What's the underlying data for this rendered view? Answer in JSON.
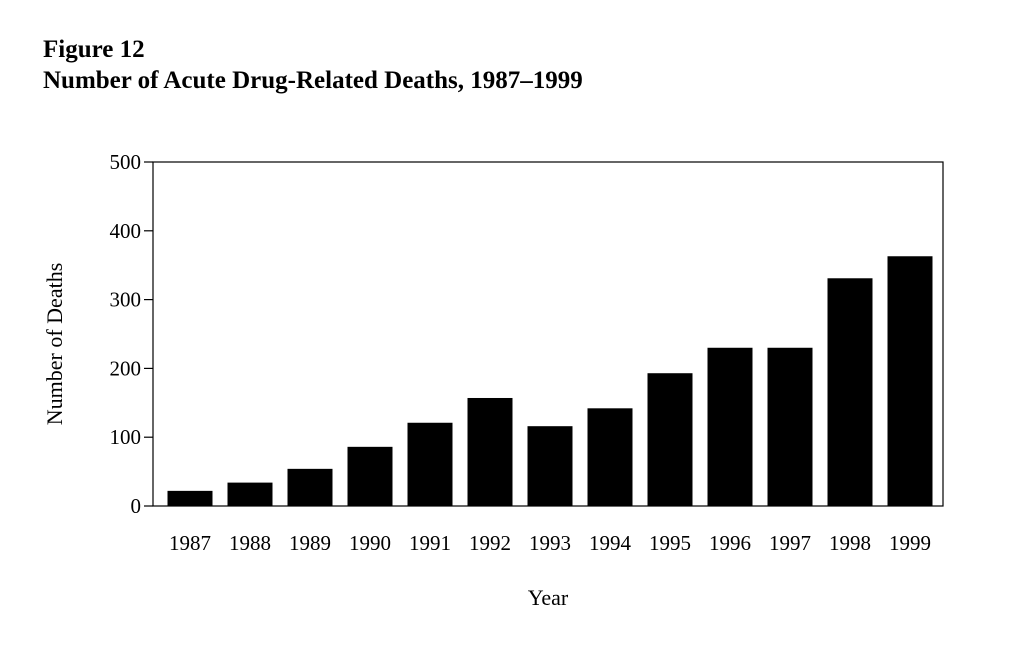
{
  "figure": {
    "number_label": "Figure 12"
  },
  "chart_data": {
    "type": "bar",
    "title": "Number of Acute Drug-Related Deaths, 1987–1999",
    "xlabel": "Year",
    "ylabel": "Number of Deaths",
    "categories": [
      "1987",
      "1988",
      "1989",
      "1990",
      "1991",
      "1992",
      "1993",
      "1994",
      "1995",
      "1996",
      "1997",
      "1998",
      "1999"
    ],
    "values": [
      22,
      34,
      54,
      86,
      121,
      157,
      116,
      142,
      193,
      230,
      230,
      331,
      363
    ],
    "ylim": [
      0,
      500
    ],
    "yticks": [
      0,
      100,
      200,
      300,
      400,
      500
    ],
    "grid": false,
    "legend": "none",
    "colors": {
      "bar": "#000000",
      "axis": "#000000",
      "background": "#ffffff"
    }
  }
}
